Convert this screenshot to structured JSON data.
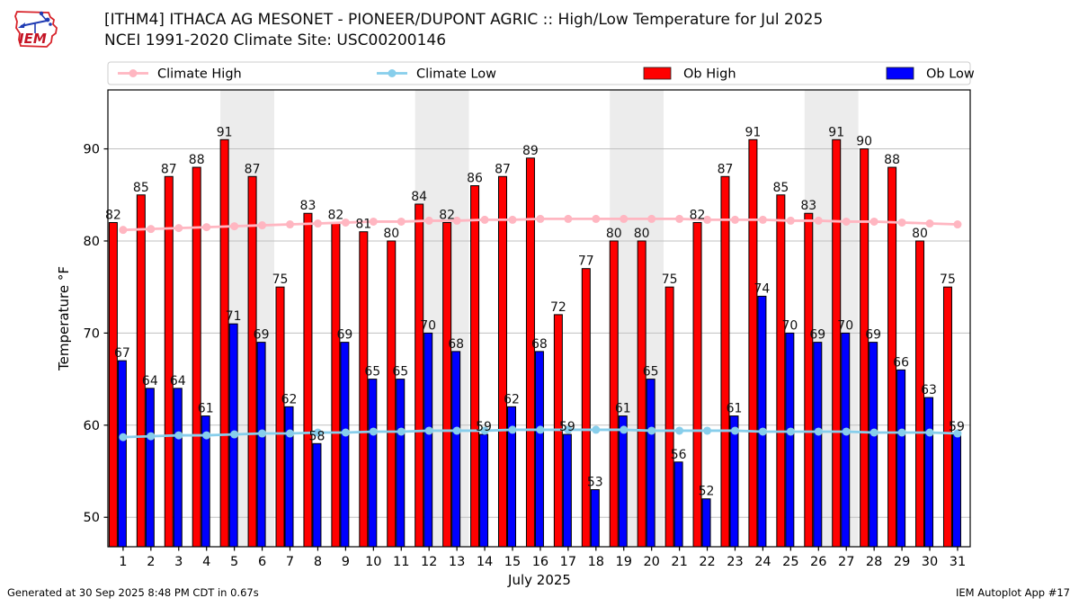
{
  "logo": {
    "text": "IEM"
  },
  "header": {
    "title_line1": "[ITHM4] ITHACA AG MESONET - PIONEER/DUPONT AGRIC :: High/Low Temperature for Jul 2025",
    "title_line2": "NCEI 1991-2020 Climate Site: USC00200146"
  },
  "legend": [
    {
      "label": "Climate High",
      "type": "line",
      "color": "#ffb6c1"
    },
    {
      "label": "Climate Low",
      "type": "line",
      "color": "#87ceeb"
    },
    {
      "label": "Ob High",
      "type": "patch",
      "color": "#ff0000"
    },
    {
      "label": "Ob Low",
      "type": "patch",
      "color": "#0000ff"
    }
  ],
  "chart_data": {
    "type": "bar",
    "title": "[ITHM4] ITHACA AG MESONET - PIONEER/DUPONT AGRIC :: High/Low Temperature for Jul 2025",
    "subtitle": "NCEI 1991-2020 Climate Site: USC00200146",
    "xlabel": "July 2025",
    "ylabel": "Temperature °F",
    "x": [
      1,
      2,
      3,
      4,
      5,
      6,
      7,
      8,
      9,
      10,
      11,
      12,
      13,
      14,
      15,
      16,
      17,
      18,
      19,
      20,
      21,
      22,
      23,
      24,
      25,
      26,
      27,
      28,
      29,
      30,
      31
    ],
    "yticks": [
      50,
      60,
      70,
      80,
      90
    ],
    "ylim": [
      46.8,
      96.4
    ],
    "grid": true,
    "grid_color": "#c0c0c0",
    "band_color": "#ececec",
    "weekend_bands": [
      [
        5,
        6
      ],
      [
        12,
        13
      ],
      [
        19,
        20
      ],
      [
        26,
        27
      ]
    ],
    "series": [
      {
        "name": "Climate High",
        "type": "line",
        "color": "#ffb6c1",
        "values": [
          81.2,
          81.3,
          81.4,
          81.5,
          81.6,
          81.7,
          81.8,
          81.9,
          82.0,
          82.1,
          82.1,
          82.2,
          82.2,
          82.3,
          82.3,
          82.4,
          82.4,
          82.4,
          82.4,
          82.4,
          82.4,
          82.3,
          82.3,
          82.3,
          82.2,
          82.2,
          82.1,
          82.1,
          82.0,
          81.9,
          81.8
        ]
      },
      {
        "name": "Climate Low",
        "type": "line",
        "color": "#87ceeb",
        "values": [
          58.7,
          58.8,
          58.9,
          58.9,
          59.0,
          59.1,
          59.1,
          59.2,
          59.2,
          59.3,
          59.3,
          59.4,
          59.4,
          59.4,
          59.5,
          59.5,
          59.5,
          59.5,
          59.5,
          59.4,
          59.4,
          59.4,
          59.4,
          59.3,
          59.3,
          59.3,
          59.3,
          59.2,
          59.2,
          59.2,
          59.1
        ]
      },
      {
        "name": "Ob High",
        "type": "bar",
        "color": "#ff0000",
        "labels": true,
        "values": [
          82,
          85,
          87,
          88,
          91,
          87,
          75,
          83,
          82,
          81,
          80,
          84,
          82,
          86,
          87,
          89,
          72,
          77,
          80,
          80,
          75,
          82,
          87,
          91,
          85,
          83,
          91,
          90,
          88,
          80,
          75
        ]
      },
      {
        "name": "Ob Low",
        "type": "bar",
        "color": "#0000ff",
        "labels": true,
        "values": [
          67,
          64,
          64,
          61,
          71,
          69,
          62,
          58,
          69,
          65,
          65,
          70,
          68,
          59,
          62,
          68,
          59,
          53,
          61,
          65,
          56,
          52,
          61,
          74,
          70,
          69,
          70,
          69,
          66,
          63,
          59
        ]
      }
    ]
  },
  "footer": {
    "left": "Generated at 30 Sep 2025 8:48 PM CDT in 0.67s",
    "right": "IEM Autoplot App #17"
  }
}
